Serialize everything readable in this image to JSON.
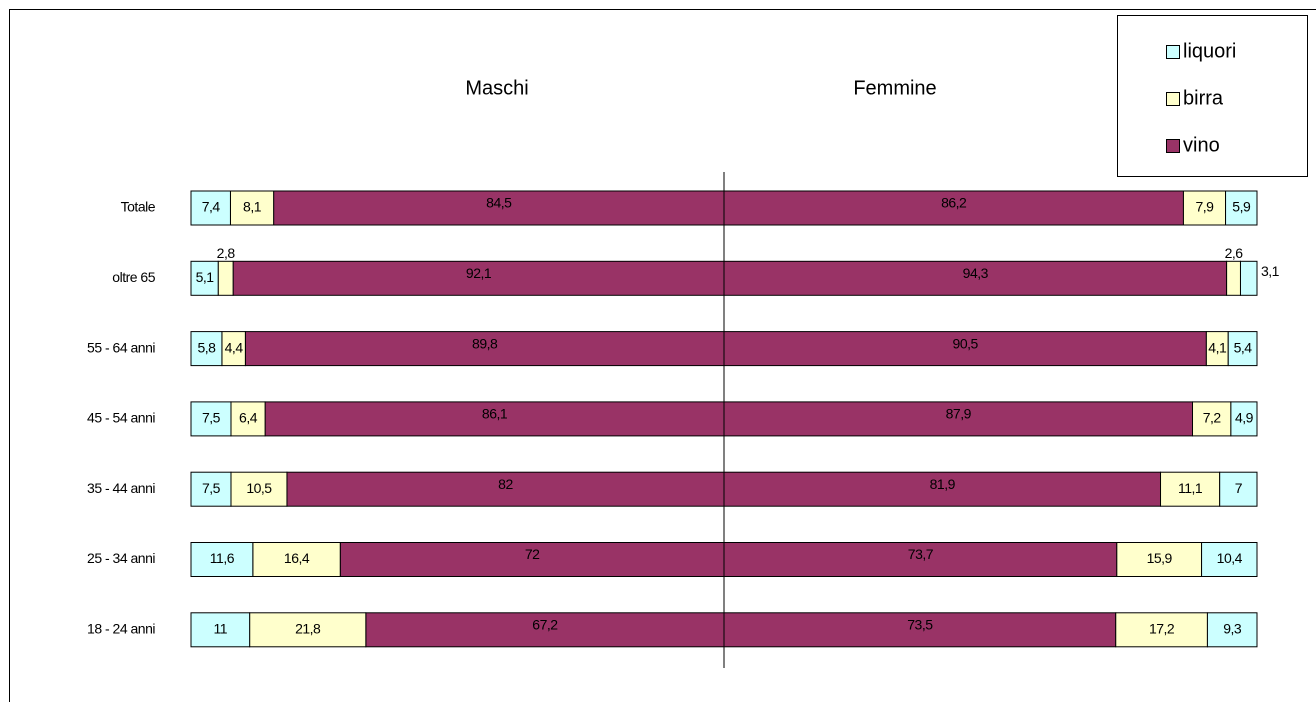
{
  "chart_data": {
    "type": "bar",
    "orientation": "horizontal",
    "panels": [
      "Maschi",
      "Femmine"
    ],
    "categories": [
      "Totale",
      "oltre 65",
      "55 - 64 anni",
      "45 - 54 anni",
      "35 - 44 anni",
      "25 - 34 anni",
      "18 - 24 anni"
    ],
    "xlim": [
      0,
      100
    ],
    "series": [
      {
        "name": "liquori",
        "color": "#ccffff",
        "values": [
          [
            7.4,
            5.1,
            5.8,
            7.5,
            7.5,
            11.6,
            11
          ],
          [
            5.9,
            3.1,
            5.4,
            4.9,
            7,
            10.4,
            9.3
          ]
        ],
        "value_labels": [
          [
            "7,4",
            "5,1",
            "5,8",
            "7,5",
            "7,5",
            "11,6",
            "11"
          ],
          [
            "5,9",
            "3,1",
            "5,4",
            "4,9",
            "7",
            "10,4",
            "9,3"
          ]
        ]
      },
      {
        "name": "birra",
        "color": "#ffffcc",
        "values": [
          [
            8.1,
            2.8,
            4.4,
            6.4,
            10.5,
            16.4,
            21.8
          ],
          [
            7.9,
            2.6,
            4.1,
            7.2,
            11.1,
            15.9,
            17.2
          ]
        ],
        "value_labels": [
          [
            "8,1",
            "2,8",
            "4,4",
            "6,4",
            "10,5",
            "16,4",
            "21,8"
          ],
          [
            "7,9",
            "2,6",
            "4,1",
            "7,2",
            "11,1",
            "15,9",
            "17,2"
          ]
        ]
      },
      {
        "name": "vino",
        "color": "#993366",
        "values": [
          [
            84.5,
            92.1,
            89.8,
            86.1,
            82,
            72,
            67.2
          ],
          [
            86.2,
            94.3,
            90.5,
            87.9,
            81.9,
            73.7,
            73.5
          ]
        ],
        "value_labels": [
          [
            "84,5",
            "92,1",
            "89,8",
            "86,1",
            "82",
            "72",
            "67,2"
          ],
          [
            "86,2",
            "94,3",
            "90,5",
            "87,9",
            "81,9",
            "73,7",
            "73,5"
          ]
        ]
      }
    ],
    "legend": "top-right"
  }
}
